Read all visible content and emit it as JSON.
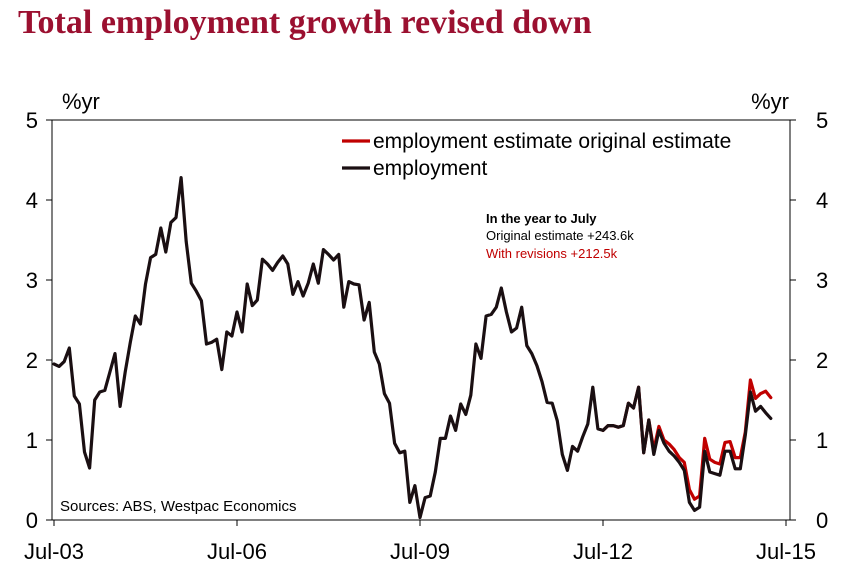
{
  "chart_data": {
    "type": "line",
    "title": "Total employment growth revised down",
    "ylabel_left": "%yr",
    "ylabel_right": "%yr",
    "ylim": [
      0,
      5
    ],
    "yticks": [
      0,
      1,
      2,
      3,
      4,
      5
    ],
    "x_start": "Jul-03",
    "x_end": "Jul-15",
    "xticks": [
      {
        "label": "Jul-03",
        "month": 0
      },
      {
        "label": "Jul-06",
        "month": 36
      },
      {
        "label": "Jul-09",
        "month": 72
      },
      {
        "label": "Jul-12",
        "month": 108
      },
      {
        "label": "Jul-15",
        "month": 144
      }
    ],
    "series": [
      {
        "name": "employment estimate original estimate",
        "color": "#c00000",
        "start_month": 108,
        "values": [
          1.12,
          1.18,
          1.18,
          1.16,
          1.18,
          1.46,
          1.4,
          1.66,
          0.84,
          1.25,
          0.88,
          1.17,
          1.0,
          0.95,
          0.88,
          0.78,
          0.72,
          0.38,
          0.26,
          0.3,
          1.02,
          0.76,
          0.72,
          0.7,
          0.97,
          0.98,
          0.78,
          0.78,
          1.1,
          1.75,
          1.52,
          1.58,
          1.61,
          1.53
        ]
      },
      {
        "name": "employment",
        "color": "#1a0f12",
        "start_month": 0,
        "values": [
          1.95,
          1.92,
          1.98,
          2.15,
          1.55,
          1.45,
          0.85,
          0.65,
          1.5,
          1.6,
          1.62,
          1.85,
          2.08,
          1.42,
          1.85,
          2.22,
          2.55,
          2.45,
          2.95,
          3.28,
          3.32,
          3.65,
          3.35,
          3.72,
          3.78,
          4.28,
          3.48,
          2.96,
          2.86,
          2.74,
          2.2,
          2.22,
          2.26,
          1.88,
          2.35,
          2.3,
          2.6,
          2.35,
          2.95,
          2.68,
          2.75,
          3.26,
          3.2,
          3.12,
          3.22,
          3.3,
          3.2,
          2.82,
          2.98,
          2.8,
          2.96,
          3.2,
          2.96,
          3.38,
          3.32,
          3.25,
          3.32,
          2.66,
          2.98,
          2.95,
          2.94,
          2.5,
          2.72,
          2.1,
          1.95,
          1.58,
          1.46,
          0.96,
          0.84,
          0.86,
          0.22,
          0.43,
          0.03,
          0.28,
          0.3,
          0.6,
          1.02,
          1.02,
          1.3,
          1.12,
          1.45,
          1.32,
          1.56,
          2.2,
          2.02,
          2.55,
          2.57,
          2.66,
          2.9,
          2.6,
          2.35,
          2.4,
          2.66,
          2.18,
          2.08,
          1.93,
          1.73,
          1.47,
          1.46,
          1.24,
          0.82,
          0.62,
          0.92,
          0.86,
          1.04,
          1.2,
          1.66,
          1.14,
          1.12,
          1.18,
          1.18,
          1.16,
          1.18,
          1.46,
          1.4,
          1.66,
          0.84,
          1.25,
          0.82,
          1.12,
          0.96,
          0.86,
          0.8,
          0.72,
          0.62,
          0.22,
          0.12,
          0.16,
          0.86,
          0.6,
          0.58,
          0.56,
          0.86,
          0.86,
          0.64,
          0.64,
          1.06,
          1.6,
          1.36,
          1.42,
          1.34,
          1.27
        ]
      }
    ],
    "legend": {
      "placement": "top-right",
      "entries": [
        "employment estimate original estimate",
        "employment"
      ]
    },
    "annotations": {
      "heading": "In the year to July",
      "line1": "Original estimate +243.6k",
      "line2": "With revisions +212.5k",
      "line2_color": "#c00000"
    },
    "source": "Sources: ABS, Westpac Economics"
  }
}
